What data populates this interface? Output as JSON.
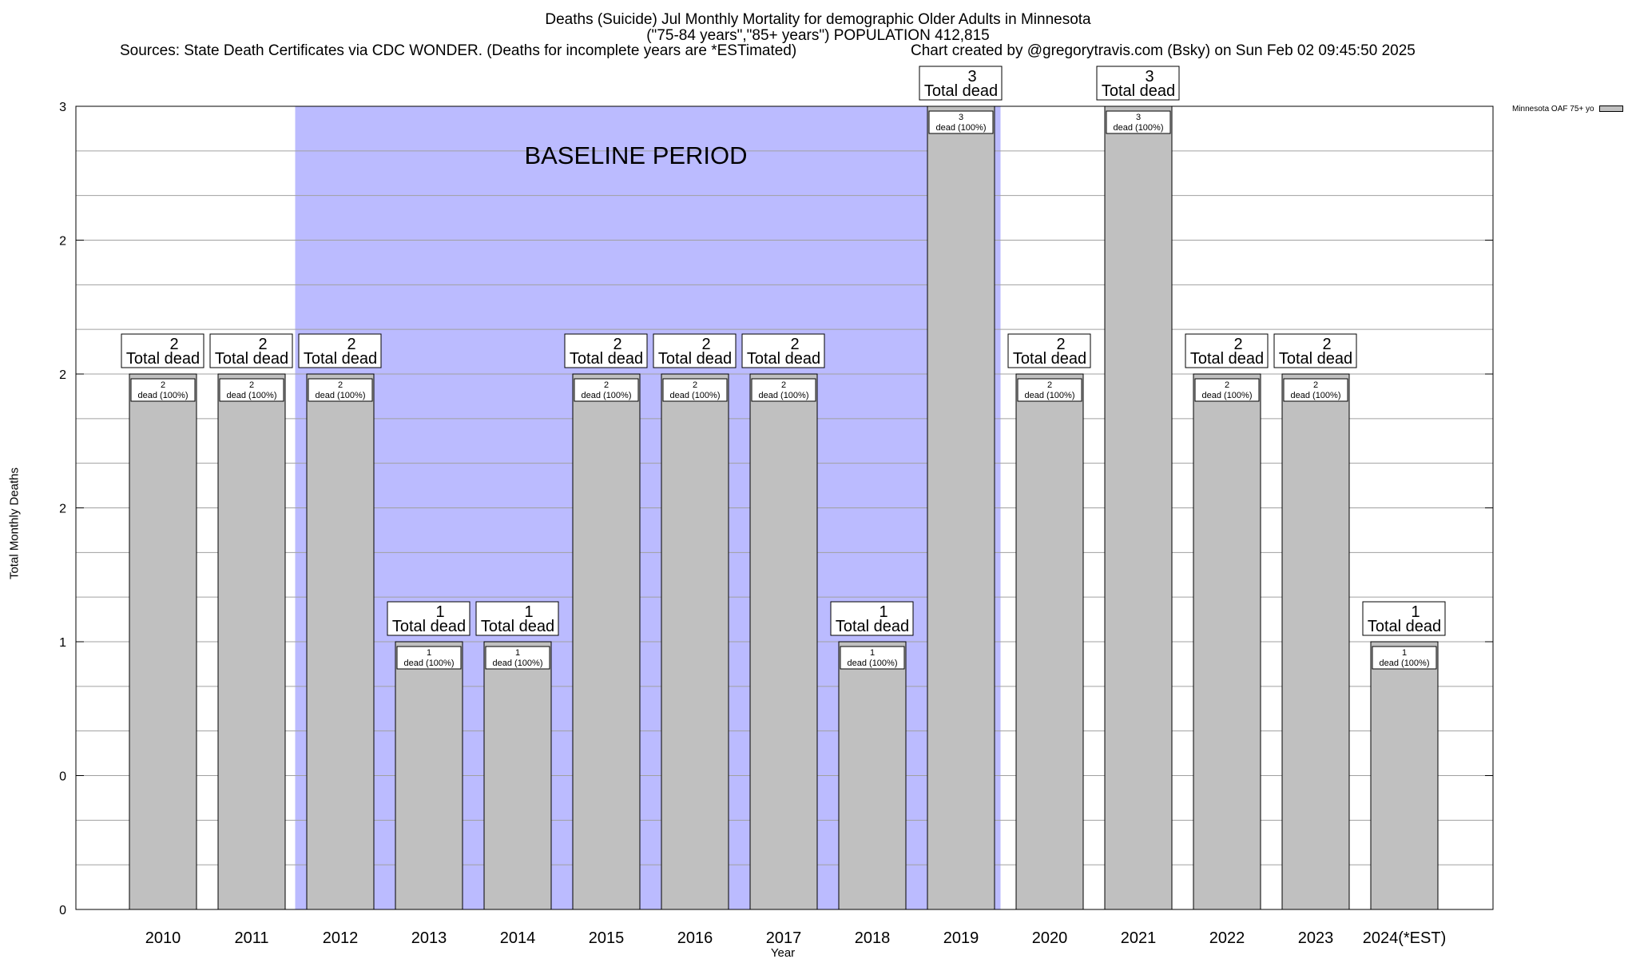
{
  "header": {
    "title_line1": "Deaths (Suicide) Jul Monthly Mortality for demographic Older Adults in Minnesota",
    "title_line2": "(\"75-84 years\",\"85+ years\") POPULATION 412,815",
    "sources": "Sources: State Death Certificates via CDC WONDER. (Deaths for incomplete years are *ESTimated)",
    "credit": "Chart created by @gregorytravis.com (Bsky) on Sun Feb 02 09:45:50 2025"
  },
  "legend": {
    "label": "Minnesota OAF 75+ yo"
  },
  "chart_data": {
    "type": "bar",
    "xlabel": "Year",
    "ylabel": "Total Monthly Deaths",
    "ylim": [
      0,
      3
    ],
    "ytick_values": [
      0,
      0.5,
      1,
      1.5,
      2,
      2.5,
      3
    ],
    "ytick_labels": [
      "0",
      "0",
      "1",
      "2",
      "2",
      "2",
      "3"
    ],
    "grid": true,
    "legend_position": "top-right outside",
    "categories": [
      "2010",
      "2011",
      "2012",
      "2013",
      "2014",
      "2015",
      "2016",
      "2017",
      "2018",
      "2019",
      "2020",
      "2021",
      "2022",
      "2023",
      "2024(*EST)"
    ],
    "series": [
      {
        "name": "Minnesota OAF 75+ yo",
        "values": [
          2,
          2,
          2,
          1,
          1,
          2,
          2,
          2,
          1,
          3,
          2,
          3,
          2,
          2,
          1
        ]
      }
    ],
    "top_label_suffix": "Total dead",
    "inner_label_suffix": "dead (100%)",
    "baseline_period": {
      "label": "BASELINE PERIOD",
      "start": "2012",
      "end": "2019"
    },
    "colors": {
      "bar": "#c0c0c0",
      "baseline": "#bbbbff",
      "grid": "#a0a0a0"
    }
  }
}
